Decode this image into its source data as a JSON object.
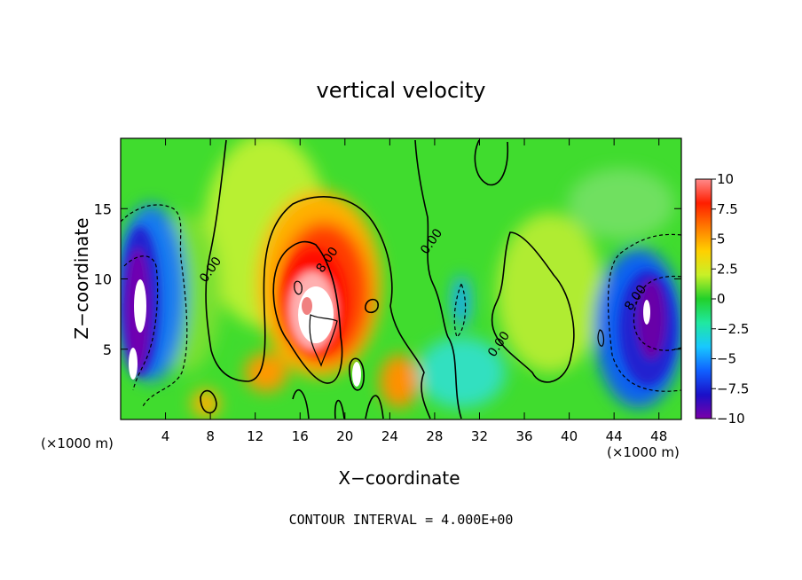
{
  "chart_data": {
    "type": "heatmap",
    "title": "vertical velocity",
    "xlabel": "X−coordinate",
    "ylabel": "Z−coordinate",
    "x_unit_label": "(×1000 m)",
    "x_ticks": [
      "4",
      "8",
      "12",
      "16",
      "20",
      "24",
      "28",
      "32",
      "36",
      "40",
      "44",
      "48"
    ],
    "x_tick_values": [
      4,
      8,
      12,
      16,
      20,
      24,
      28,
      32,
      36,
      40,
      44,
      48
    ],
    "y_ticks": [
      "5",
      "10",
      "15"
    ],
    "y_tick_values": [
      5,
      10,
      15
    ],
    "xlim": [
      0,
      50
    ],
    "ylim": [
      0,
      20
    ],
    "colorbar": {
      "ticks": [
        "10",
        "7.5",
        "5",
        "2.5",
        "0",
        "−2.5",
        "−5",
        "−7.5",
        "−10"
      ],
      "tick_values": [
        10,
        7.5,
        5,
        2.5,
        0,
        -2.5,
        -5,
        -7.5,
        -10
      ],
      "range": [
        -10,
        10
      ],
      "colors": [
        "#7a00a8",
        "#1a10c8",
        "#1060ff",
        "#18c8ff",
        "#20e8a0",
        "#22d02a",
        "#c8f028",
        "#ffd000",
        "#ff7a00",
        "#ff1e00",
        "#ff8a8a"
      ]
    },
    "contour_labels": [
      {
        "text": "0.00",
        "x": 8.3,
        "z": 10.5
      },
      {
        "text": "8.00",
        "x": 18.7,
        "z": 11.2
      },
      {
        "text": "0.00",
        "x": 28.0,
        "z": 12.5
      },
      {
        "text": "0.00",
        "x": 34.0,
        "z": 5.2
      },
      {
        "text": "8.00",
        "x": 46.2,
        "z": 8.5
      }
    ],
    "footnote": "CONTOUR INTERVAL = 4.000E+00"
  }
}
